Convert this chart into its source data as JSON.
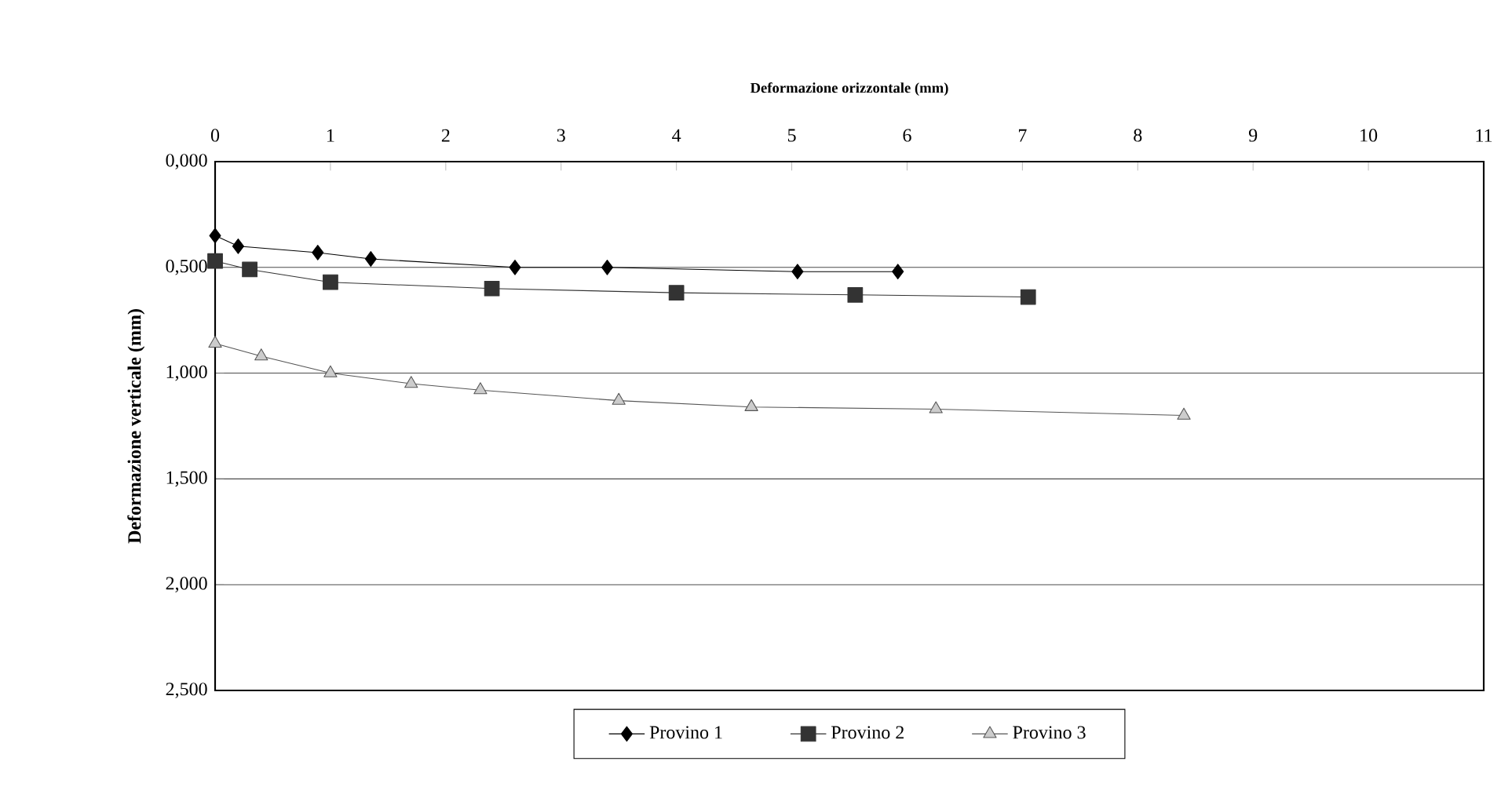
{
  "chart_data": {
    "type": "line",
    "xlabel": "Deformazione orizzontale (mm)",
    "ylabel": "Deformazione verticale  (mm)",
    "xlim": [
      0,
      11
    ],
    "xticks": [
      0,
      1,
      2,
      3,
      4,
      5,
      6,
      7,
      8,
      9,
      10,
      11
    ],
    "ylim": [
      2.5,
      0
    ],
    "yticks": [
      {
        "value": 0,
        "label": "0,000"
      },
      {
        "value": 0.5,
        "label": "0,500"
      },
      {
        "value": 1,
        "label": "1,000"
      },
      {
        "value": 1.5,
        "label": "1,500"
      },
      {
        "value": 2,
        "label": "2,000"
      },
      {
        "value": 2.5,
        "label": "2,500"
      }
    ],
    "grid": "y",
    "legend": "bottom",
    "line_style": "solid",
    "series": [
      {
        "name": "Provino 1",
        "color": "#000000",
        "marker": "diamond",
        "x": [
          0,
          0.2,
          0.89,
          1.35,
          2.6,
          3.4,
          5.05,
          5.92
        ],
        "values": [
          0.35,
          0.4,
          0.43,
          0.46,
          0.5,
          0.5,
          0.52,
          0.52
        ]
      },
      {
        "name": "Provino 2",
        "color": "#333333",
        "marker": "square",
        "x": [
          0,
          0.3,
          1.0,
          2.4,
          4.0,
          5.55,
          7.05
        ],
        "values": [
          0.47,
          0.51,
          0.57,
          0.6,
          0.62,
          0.63,
          0.64
        ]
      },
      {
        "name": "Provino 3",
        "color": "#555555",
        "marker": "triangle",
        "x": [
          0,
          0.4,
          1.0,
          1.7,
          2.3,
          3.5,
          4.65,
          6.25,
          8.4
        ],
        "values": [
          0.86,
          0.92,
          1.0,
          1.05,
          1.08,
          1.13,
          1.16,
          1.17,
          1.2
        ]
      }
    ]
  }
}
